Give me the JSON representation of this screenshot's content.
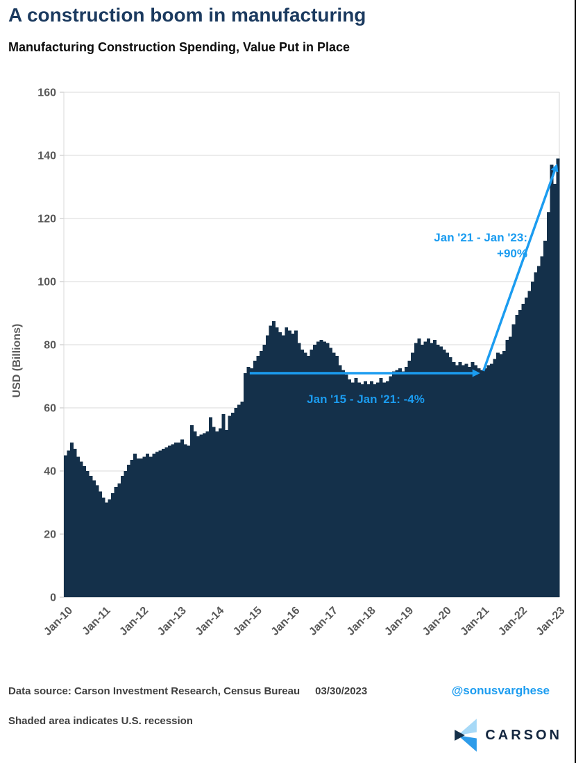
{
  "page": {
    "title": "A construction boom in manufacturing",
    "subtitle": "Manufacturing Construction Spending, Value Put in Place"
  },
  "chart_data": {
    "type": "bar",
    "title": "Manufacturing Construction Spending, Value Put in Place",
    "xlabel": "",
    "ylabel": "USD (Billions)",
    "ylim": [
      0,
      160
    ],
    "ytick_interval": 20,
    "ytick_labels": [
      "0",
      "20",
      "40",
      "60",
      "80",
      "100",
      "120",
      "140",
      "160"
    ],
    "x_tick_labels": [
      "Jan-10",
      "Jan-11",
      "Jan-12",
      "Jan-13",
      "Jan-14",
      "Jan-15",
      "Jan-16",
      "Jan-17",
      "Jan-18",
      "Jan-19",
      "Jan-20",
      "Jan-21",
      "Jan-22",
      "Jan-23"
    ],
    "frequency": "monthly",
    "x_start": "Jan-10",
    "x_end": "Jan-23",
    "grid": "horizontal",
    "legend_position": "none",
    "series": [
      {
        "name": "Manufacturing construction spending, value put in place (USD billions)",
        "values": [
          45,
          46.5,
          49,
          47,
          44.5,
          43,
          41.5,
          40,
          38.5,
          37,
          35.5,
          33.5,
          31.5,
          30,
          31,
          33,
          35,
          36,
          38.5,
          40,
          42,
          43.5,
          45.5,
          44,
          44,
          44.5,
          45.5,
          44.5,
          45.5,
          46,
          46.5,
          47,
          47.5,
          48,
          48.5,
          49,
          49,
          50,
          48.5,
          48,
          54.5,
          52.5,
          51,
          51.5,
          52,
          52.5,
          57,
          54,
          52.5,
          53.5,
          58,
          53,
          57.5,
          58.5,
          60,
          61,
          62,
          71,
          73,
          72.5,
          75,
          76.5,
          78,
          80,
          83,
          86,
          87.5,
          85.5,
          84,
          83,
          85.5,
          84.5,
          83.5,
          84.5,
          80.5,
          78.5,
          77.5,
          76.5,
          78.5,
          80,
          81,
          81.5,
          81,
          80.5,
          79,
          77.5,
          76.5,
          73.5,
          72,
          70.5,
          69,
          68,
          69.5,
          68,
          67.5,
          68.5,
          67.5,
          68.5,
          67.5,
          68,
          69.5,
          68,
          68.5,
          70,
          71.5,
          72,
          72.5,
          71.5,
          73,
          75,
          77.5,
          80.5,
          82,
          80,
          81,
          82,
          80.5,
          81.5,
          80,
          79.5,
          78.5,
          77.5,
          76,
          74.5,
          73.5,
          74.5,
          73.5,
          74,
          73,
          74.5,
          73.5,
          72.5,
          72,
          72.5,
          73.5,
          74,
          75.5,
          77.5,
          77,
          78,
          81.5,
          82.5,
          86.5,
          89.5,
          91,
          93,
          95,
          97,
          100,
          103,
          105,
          108,
          113,
          122,
          137,
          131,
          139
        ]
      }
    ],
    "annotations": [
      {
        "id": "flat-period",
        "text": "Jan '15 - Jan '21: -4%",
        "arrow": "horizontal",
        "from_x": "Jan-15",
        "to_x": "Jan-21",
        "y_value": 71
      },
      {
        "id": "surge-period",
        "text_line1": "Jan '21 - Jan '23:",
        "text_line2": "+90%",
        "arrow": "diagonal",
        "from_x": "Jan-21",
        "from_y": 71,
        "to_x": "Jan-23",
        "to_y": 138
      }
    ],
    "colors": {
      "bar": "#14304a",
      "accent": "#1b9cf0",
      "grid": "#d9d9d9",
      "axis_text": "#595959"
    }
  },
  "footer": {
    "source_text": "Data source: Carson Investment Research, Census Bureau",
    "date": "03/30/2023",
    "handle": "@sonusvarghese",
    "note": "Shaded area indicates U.S. recession",
    "logo_text": "CARSON"
  }
}
